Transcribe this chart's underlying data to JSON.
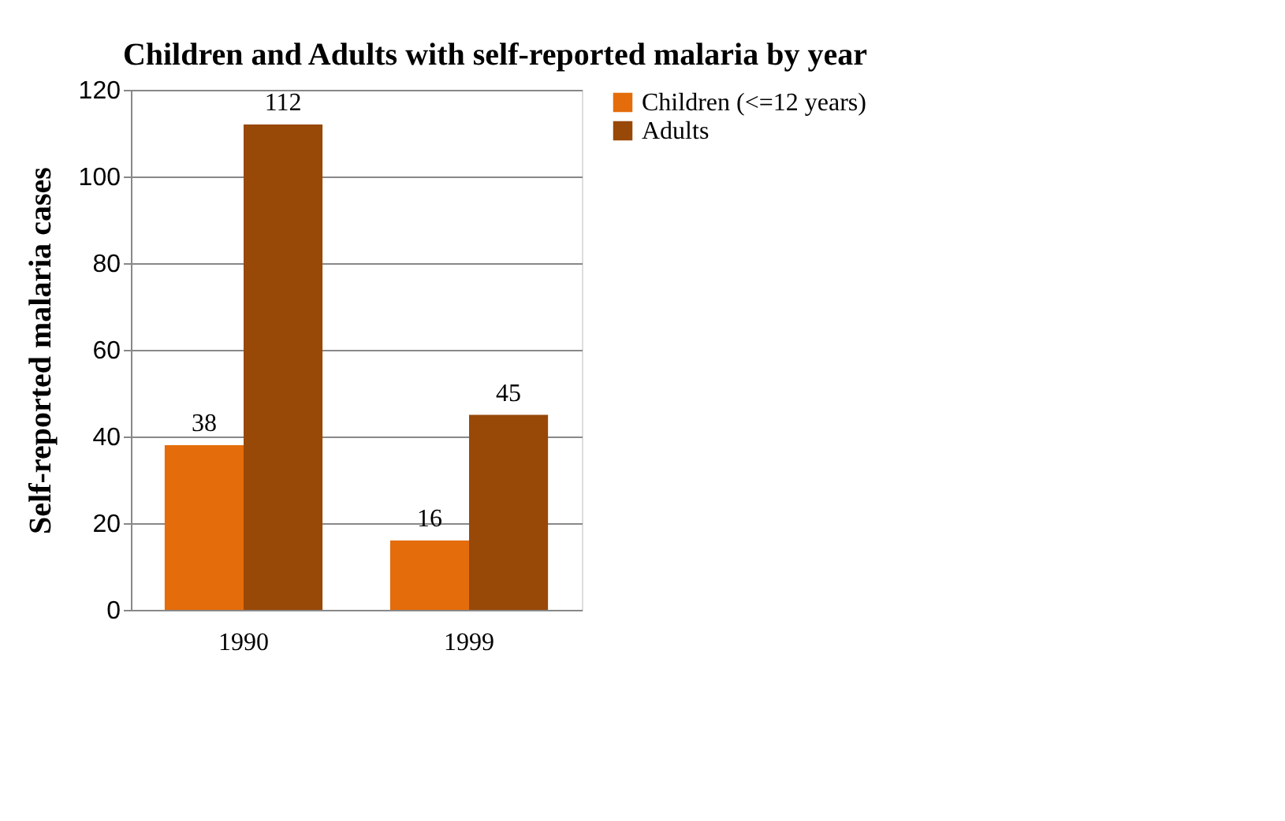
{
  "chart_data": {
    "type": "bar",
    "title": "Children and Adults with self-reported malaria by year",
    "ylabel": "Self-reported malaria cases",
    "categories": [
      "1990",
      "1999"
    ],
    "series": [
      {
        "name": "Children (<=12 years)",
        "color": "#e46c0a",
        "values": [
          38,
          16
        ]
      },
      {
        "name": "Adults",
        "color": "#984807",
        "values": [
          112,
          45
        ]
      }
    ],
    "ylim": [
      0,
      120
    ],
    "yticks": [
      0,
      20,
      40,
      60,
      80,
      100,
      120
    ],
    "grid": "y",
    "legend": "right",
    "data_labels": true
  }
}
